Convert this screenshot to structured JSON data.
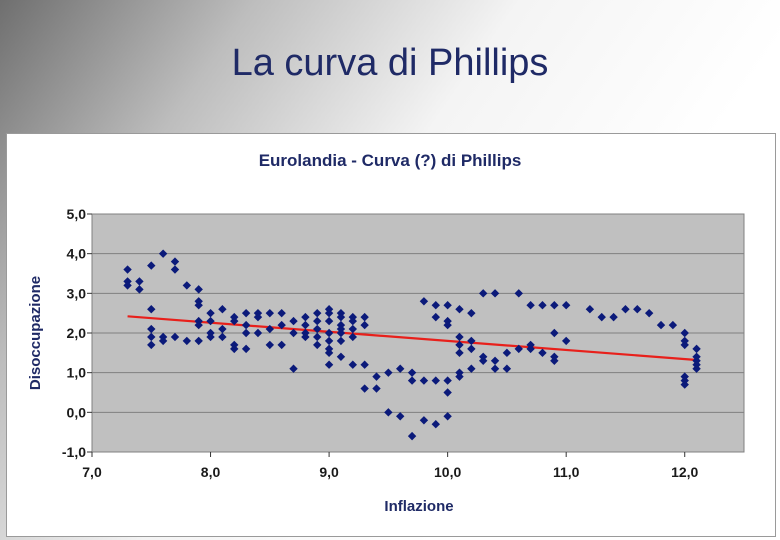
{
  "slide": {
    "title": "La curva di Phillips"
  },
  "colors": {
    "plot_bg": "#c0c0c0",
    "marker": "#0b1a7a",
    "trend": "#e8201b",
    "title": "#1f2a66"
  },
  "chart_data": {
    "type": "scatter",
    "title": "Eurolandia - Curva (?) di Phillips",
    "xlabel": "Inflazione",
    "ylabel": "Disoccupazione",
    "xlim": [
      7.0,
      12.5
    ],
    "ylim": [
      -1.0,
      5.0
    ],
    "x_ticks": [
      "7,0",
      "8,0",
      "9,0",
      "10,0",
      "11,0",
      "12,0"
    ],
    "y_ticks": [
      "5,0",
      "4,0",
      "3,0",
      "2,0",
      "1,0",
      "0,0",
      "-1,0"
    ],
    "grid": "horizontal",
    "legend": "none",
    "trendline": {
      "x": [
        7.3,
        12.1
      ],
      "y": [
        2.42,
        1.32
      ]
    },
    "points": [
      [
        7.3,
        3.6
      ],
      [
        7.3,
        3.3
      ],
      [
        7.3,
        3.2
      ],
      [
        7.4,
        3.3
      ],
      [
        7.4,
        3.1
      ],
      [
        7.5,
        3.7
      ],
      [
        7.5,
        2.6
      ],
      [
        7.5,
        2.1
      ],
      [
        7.5,
        1.9
      ],
      [
        7.5,
        1.7
      ],
      [
        7.6,
        4.0
      ],
      [
        7.6,
        1.9
      ],
      [
        7.6,
        1.8
      ],
      [
        7.7,
        3.8
      ],
      [
        7.7,
        3.6
      ],
      [
        7.7,
        1.9
      ],
      [
        7.8,
        3.2
      ],
      [
        7.8,
        1.8
      ],
      [
        7.9,
        3.1
      ],
      [
        7.9,
        2.8
      ],
      [
        7.9,
        2.7
      ],
      [
        7.9,
        2.3
      ],
      [
        7.9,
        2.2
      ],
      [
        7.9,
        1.8
      ],
      [
        8.0,
        2.5
      ],
      [
        8.0,
        2.3
      ],
      [
        8.0,
        2.0
      ],
      [
        8.0,
        1.9
      ],
      [
        8.1,
        2.6
      ],
      [
        8.1,
        2.1
      ],
      [
        8.1,
        1.9
      ],
      [
        8.2,
        2.4
      ],
      [
        8.2,
        2.3
      ],
      [
        8.2,
        1.7
      ],
      [
        8.2,
        1.6
      ],
      [
        8.3,
        2.5
      ],
      [
        8.3,
        2.2
      ],
      [
        8.3,
        2.0
      ],
      [
        8.3,
        1.6
      ],
      [
        8.4,
        2.5
      ],
      [
        8.4,
        2.4
      ],
      [
        8.4,
        2.0
      ],
      [
        8.5,
        2.5
      ],
      [
        8.5,
        2.1
      ],
      [
        8.5,
        1.7
      ],
      [
        8.6,
        2.5
      ],
      [
        8.6,
        2.2
      ],
      [
        8.6,
        1.7
      ],
      [
        8.7,
        2.3
      ],
      [
        8.7,
        2.0
      ],
      [
        8.7,
        1.1
      ],
      [
        8.8,
        2.4
      ],
      [
        8.8,
        2.2
      ],
      [
        8.8,
        2.0
      ],
      [
        8.8,
        1.9
      ],
      [
        8.9,
        2.5
      ],
      [
        8.9,
        2.3
      ],
      [
        8.9,
        2.1
      ],
      [
        8.9,
        1.9
      ],
      [
        8.9,
        1.7
      ],
      [
        9.0,
        2.6
      ],
      [
        9.0,
        2.5
      ],
      [
        9.0,
        2.3
      ],
      [
        9.0,
        2.0
      ],
      [
        9.0,
        1.8
      ],
      [
        9.0,
        1.6
      ],
      [
        9.0,
        1.5
      ],
      [
        9.0,
        1.2
      ],
      [
        9.1,
        2.5
      ],
      [
        9.1,
        2.4
      ],
      [
        9.1,
        2.2
      ],
      [
        9.1,
        2.1
      ],
      [
        9.1,
        2.0
      ],
      [
        9.1,
        1.8
      ],
      [
        9.1,
        1.4
      ],
      [
        9.2,
        2.4
      ],
      [
        9.2,
        2.3
      ],
      [
        9.2,
        2.1
      ],
      [
        9.2,
        1.9
      ],
      [
        9.2,
        1.2
      ],
      [
        9.3,
        2.4
      ],
      [
        9.3,
        2.2
      ],
      [
        9.3,
        1.2
      ],
      [
        9.3,
        0.6
      ],
      [
        9.4,
        0.9
      ],
      [
        9.4,
        0.6
      ],
      [
        9.5,
        -0.0
      ],
      [
        9.5,
        1.0
      ],
      [
        9.6,
        1.1
      ],
      [
        9.6,
        -0.1
      ],
      [
        9.7,
        1.0
      ],
      [
        9.7,
        0.8
      ],
      [
        9.7,
        -0.6
      ],
      [
        9.8,
        2.8
      ],
      [
        9.8,
        0.8
      ],
      [
        9.8,
        -0.2
      ],
      [
        9.9,
        2.7
      ],
      [
        9.9,
        2.4
      ],
      [
        9.9,
        0.8
      ],
      [
        9.9,
        -0.3
      ],
      [
        10.0,
        2.7
      ],
      [
        10.0,
        2.3
      ],
      [
        10.0,
        2.2
      ],
      [
        10.0,
        0.8
      ],
      [
        10.0,
        0.5
      ],
      [
        10.0,
        -0.1
      ],
      [
        10.1,
        2.6
      ],
      [
        10.1,
        1.9
      ],
      [
        10.1,
        1.7
      ],
      [
        10.1,
        1.5
      ],
      [
        10.1,
        1.0
      ],
      [
        10.1,
        0.9
      ],
      [
        10.2,
        2.5
      ],
      [
        10.2,
        1.8
      ],
      [
        10.2,
        1.6
      ],
      [
        10.2,
        1.1
      ],
      [
        10.3,
        3.0
      ],
      [
        10.3,
        1.4
      ],
      [
        10.3,
        1.3
      ],
      [
        10.4,
        3.0
      ],
      [
        10.4,
        1.3
      ],
      [
        10.4,
        1.1
      ],
      [
        10.5,
        1.5
      ],
      [
        10.5,
        1.1
      ],
      [
        10.6,
        3.0
      ],
      [
        10.6,
        1.6
      ],
      [
        10.7,
        2.7
      ],
      [
        10.7,
        1.7
      ],
      [
        10.7,
        1.6
      ],
      [
        10.8,
        2.7
      ],
      [
        10.8,
        1.5
      ],
      [
        10.9,
        2.7
      ],
      [
        10.9,
        2.0
      ],
      [
        10.9,
        1.4
      ],
      [
        10.9,
        1.3
      ],
      [
        11.0,
        2.7
      ],
      [
        11.0,
        1.8
      ],
      [
        11.2,
        2.6
      ],
      [
        11.3,
        2.4
      ],
      [
        11.4,
        2.4
      ],
      [
        11.5,
        2.6
      ],
      [
        11.6,
        2.6
      ],
      [
        11.7,
        2.5
      ],
      [
        11.8,
        2.2
      ],
      [
        11.9,
        2.2
      ],
      [
        12.0,
        2.0
      ],
      [
        12.0,
        1.8
      ],
      [
        12.0,
        1.7
      ],
      [
        12.0,
        0.9
      ],
      [
        12.0,
        0.8
      ],
      [
        12.0,
        0.7
      ],
      [
        12.1,
        1.6
      ],
      [
        12.1,
        1.4
      ],
      [
        12.1,
        1.3
      ],
      [
        12.1,
        1.2
      ],
      [
        12.1,
        1.1
      ]
    ]
  }
}
